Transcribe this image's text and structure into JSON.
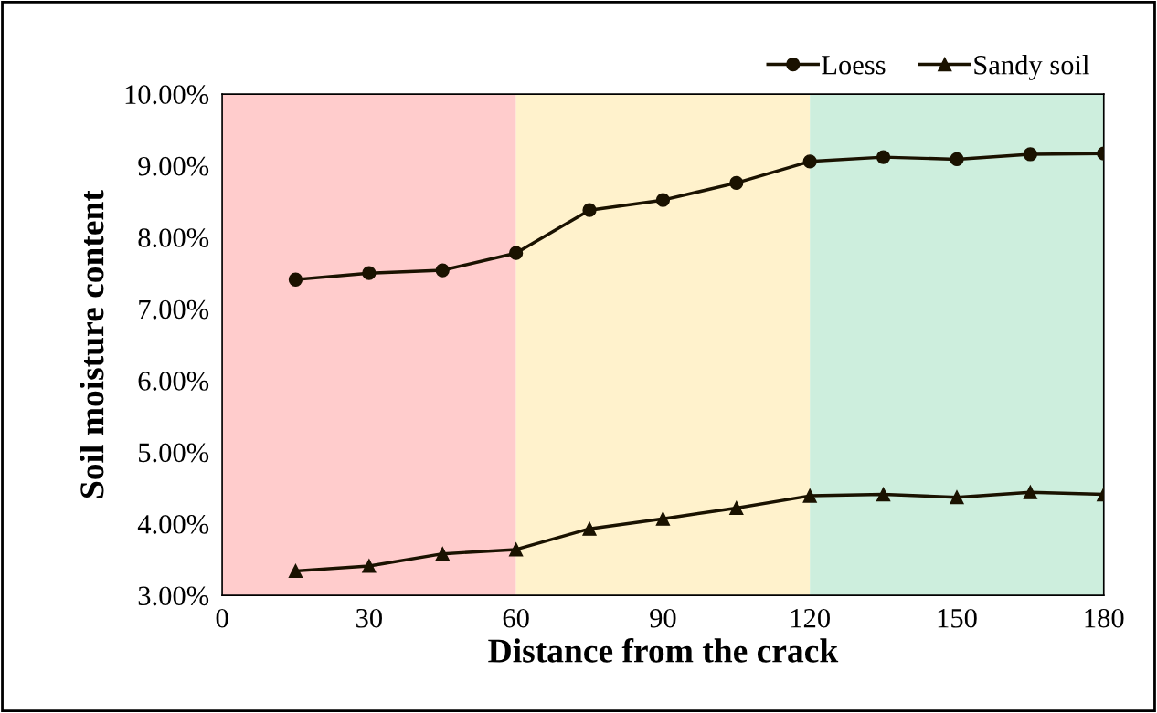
{
  "chart_data": {
    "type": "line",
    "xlabel": "Distance from the crack",
    "ylabel": "Soil moisture content",
    "x": [
      15,
      30,
      45,
      60,
      75,
      90,
      105,
      120,
      135,
      150,
      165,
      180
    ],
    "series": [
      {
        "name": "Loess",
        "color": "#1a1200",
        "marker": "circle",
        "values": [
          7.41,
          7.5,
          7.54,
          7.78,
          8.38,
          8.52,
          8.76,
          9.06,
          9.12,
          9.09,
          9.16,
          9.17
        ]
      },
      {
        "name": "Sandy soil",
        "color": "#1a1200",
        "marker": "triangle",
        "values": [
          3.34,
          3.41,
          3.58,
          3.64,
          3.93,
          4.07,
          4.22,
          4.39,
          4.41,
          4.37,
          4.44,
          4.41
        ]
      }
    ],
    "xlim": [
      0,
      180
    ],
    "xticks": [
      0,
      30,
      60,
      90,
      120,
      150,
      180
    ],
    "ylim": [
      3,
      10
    ],
    "yticks": [
      {
        "value": 3,
        "label": "3.00%"
      },
      {
        "value": 4,
        "label": "4.00%"
      },
      {
        "value": 5,
        "label": "5.00%"
      },
      {
        "value": 6,
        "label": "6.00%"
      },
      {
        "value": 7,
        "label": "7.00%"
      },
      {
        "value": 8,
        "label": "8.00%"
      },
      {
        "value": 9,
        "label": "9.00%"
      },
      {
        "value": 10,
        "label": "10.00%"
      }
    ],
    "bands": [
      {
        "axis": "x",
        "from": 0,
        "to": 60,
        "color": "#ffcccc"
      },
      {
        "axis": "x",
        "from": 60,
        "to": 120,
        "color": "#fff2cc"
      },
      {
        "axis": "x",
        "from": 120,
        "to": 180,
        "color": "#cdeedd"
      }
    ],
    "grid": false,
    "legend": "top right",
    "line_style": "solid"
  }
}
